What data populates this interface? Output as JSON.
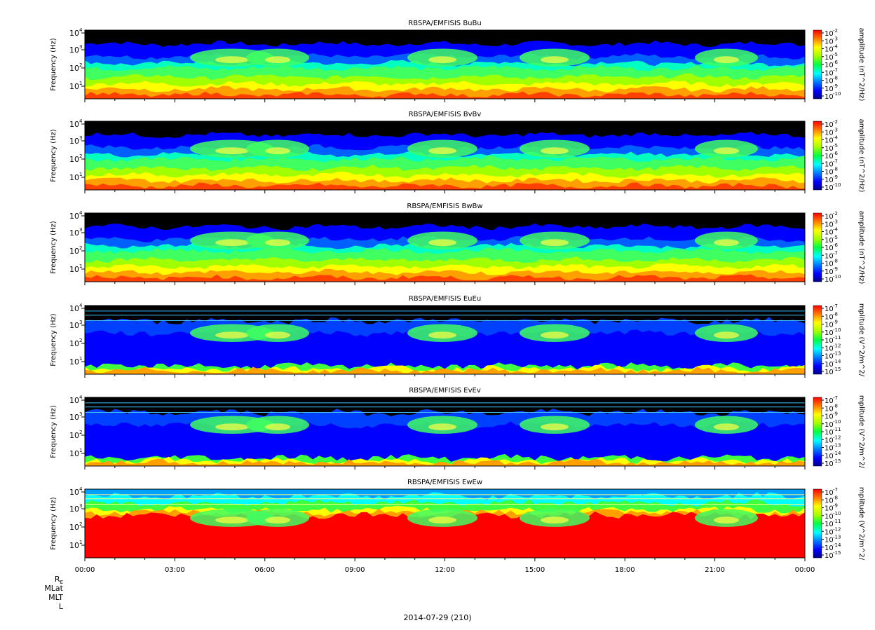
{
  "figure": {
    "ylabel": "Frequency (Hz)",
    "date_label": "2014-07-29 (210)",
    "ephemeris_labels": [
      "R",
      "MLat",
      "MLT",
      "L"
    ],
    "ephemeris_re_sub": "E",
    "x_ticks": [
      "00:00",
      "03:00",
      "06:00",
      "09:00",
      "12:00",
      "15:00",
      "18:00",
      "21:00",
      "00:00"
    ]
  },
  "chart_data": [
    {
      "type": "heatmap",
      "title": "RBSPA/EMFISIS  BuBu",
      "ylabel": "Frequency (Hz)",
      "yscale": "log",
      "y_ticks": [
        "10",
        "10",
        "10",
        "10"
      ],
      "y_tick_exponents": [
        "1",
        "2",
        "3",
        "4"
      ],
      "colorbar_label": "amplitude (nT^2/Hz)",
      "colorbar_ticks": [
        "-2",
        "-3",
        "-4",
        "-5",
        "-6",
        "-7",
        "-8",
        "-9",
        "-10"
      ],
      "colorbar_range": [
        -10,
        -2
      ],
      "xlim": [
        "00:00",
        "24:00"
      ]
    },
    {
      "type": "heatmap",
      "title": "RBSPA/EMFISIS  BvBv",
      "ylabel": "Frequency (Hz)",
      "yscale": "log",
      "y_ticks": [
        "10",
        "10",
        "10",
        "10"
      ],
      "y_tick_exponents": [
        "1",
        "2",
        "3",
        "4"
      ],
      "colorbar_label": "amplitude (nT^2/Hz)",
      "colorbar_ticks": [
        "-2",
        "-3",
        "-4",
        "-5",
        "-6",
        "-7",
        "-8",
        "-9",
        "-10"
      ],
      "colorbar_range": [
        -10,
        -2
      ],
      "xlim": [
        "00:00",
        "24:00"
      ]
    },
    {
      "type": "heatmap",
      "title": "RBSPA/EMFISIS  BwBw",
      "ylabel": "Frequency (Hz)",
      "yscale": "log",
      "y_ticks": [
        "10",
        "10",
        "10",
        "10"
      ],
      "y_tick_exponents": [
        "1",
        "2",
        "3",
        "4"
      ],
      "colorbar_label": "amplitude (nT^2/Hz)",
      "colorbar_ticks": [
        "-2",
        "-3",
        "-4",
        "-5",
        "-6",
        "-7",
        "-8",
        "-9",
        "-10"
      ],
      "colorbar_range": [
        -10,
        -2
      ],
      "xlim": [
        "00:00",
        "24:00"
      ]
    },
    {
      "type": "heatmap",
      "title": "RBSPA/EMFISIS  EuEu",
      "ylabel": "Frequency (Hz)",
      "yscale": "log",
      "y_ticks": [
        "10",
        "10",
        "10",
        "10"
      ],
      "y_tick_exponents": [
        "1",
        "2",
        "3",
        "4"
      ],
      "colorbar_label": "mplitude (V^2/m^2/",
      "colorbar_ticks": [
        "-7",
        "-8",
        "-9",
        "-10",
        "-11",
        "-12",
        "-13",
        "-14",
        "-15"
      ],
      "colorbar_range": [
        -15,
        -7
      ],
      "xlim": [
        "00:00",
        "24:00"
      ]
    },
    {
      "type": "heatmap",
      "title": "RBSPA/EMFISIS  EvEv",
      "ylabel": "Frequency (Hz)",
      "yscale": "log",
      "y_ticks": [
        "10",
        "10",
        "10",
        "10"
      ],
      "y_tick_exponents": [
        "1",
        "2",
        "3",
        "4"
      ],
      "colorbar_label": "mplitude (V^2/m^2/",
      "colorbar_ticks": [
        "-7",
        "-8",
        "-9",
        "-10",
        "-11",
        "-12",
        "-13",
        "-14",
        "-15"
      ],
      "colorbar_range": [
        -15,
        -7
      ],
      "xlim": [
        "00:00",
        "24:00"
      ]
    },
    {
      "type": "heatmap",
      "title": "RBSPA/EMFISIS  EwEw",
      "ylabel": "Frequency (Hz)",
      "yscale": "log",
      "y_ticks": [
        "10",
        "10",
        "10",
        "10"
      ],
      "y_tick_exponents": [
        "1",
        "2",
        "3",
        "4"
      ],
      "colorbar_label": "mplitude (V^2/m^2/",
      "colorbar_ticks": [
        "-7",
        "-8",
        "-9",
        "-10",
        "-11",
        "-12",
        "-13",
        "-14",
        "-15"
      ],
      "colorbar_range": [
        -15,
        -7
      ],
      "xlim": [
        "00:00",
        "24:00"
      ]
    }
  ]
}
